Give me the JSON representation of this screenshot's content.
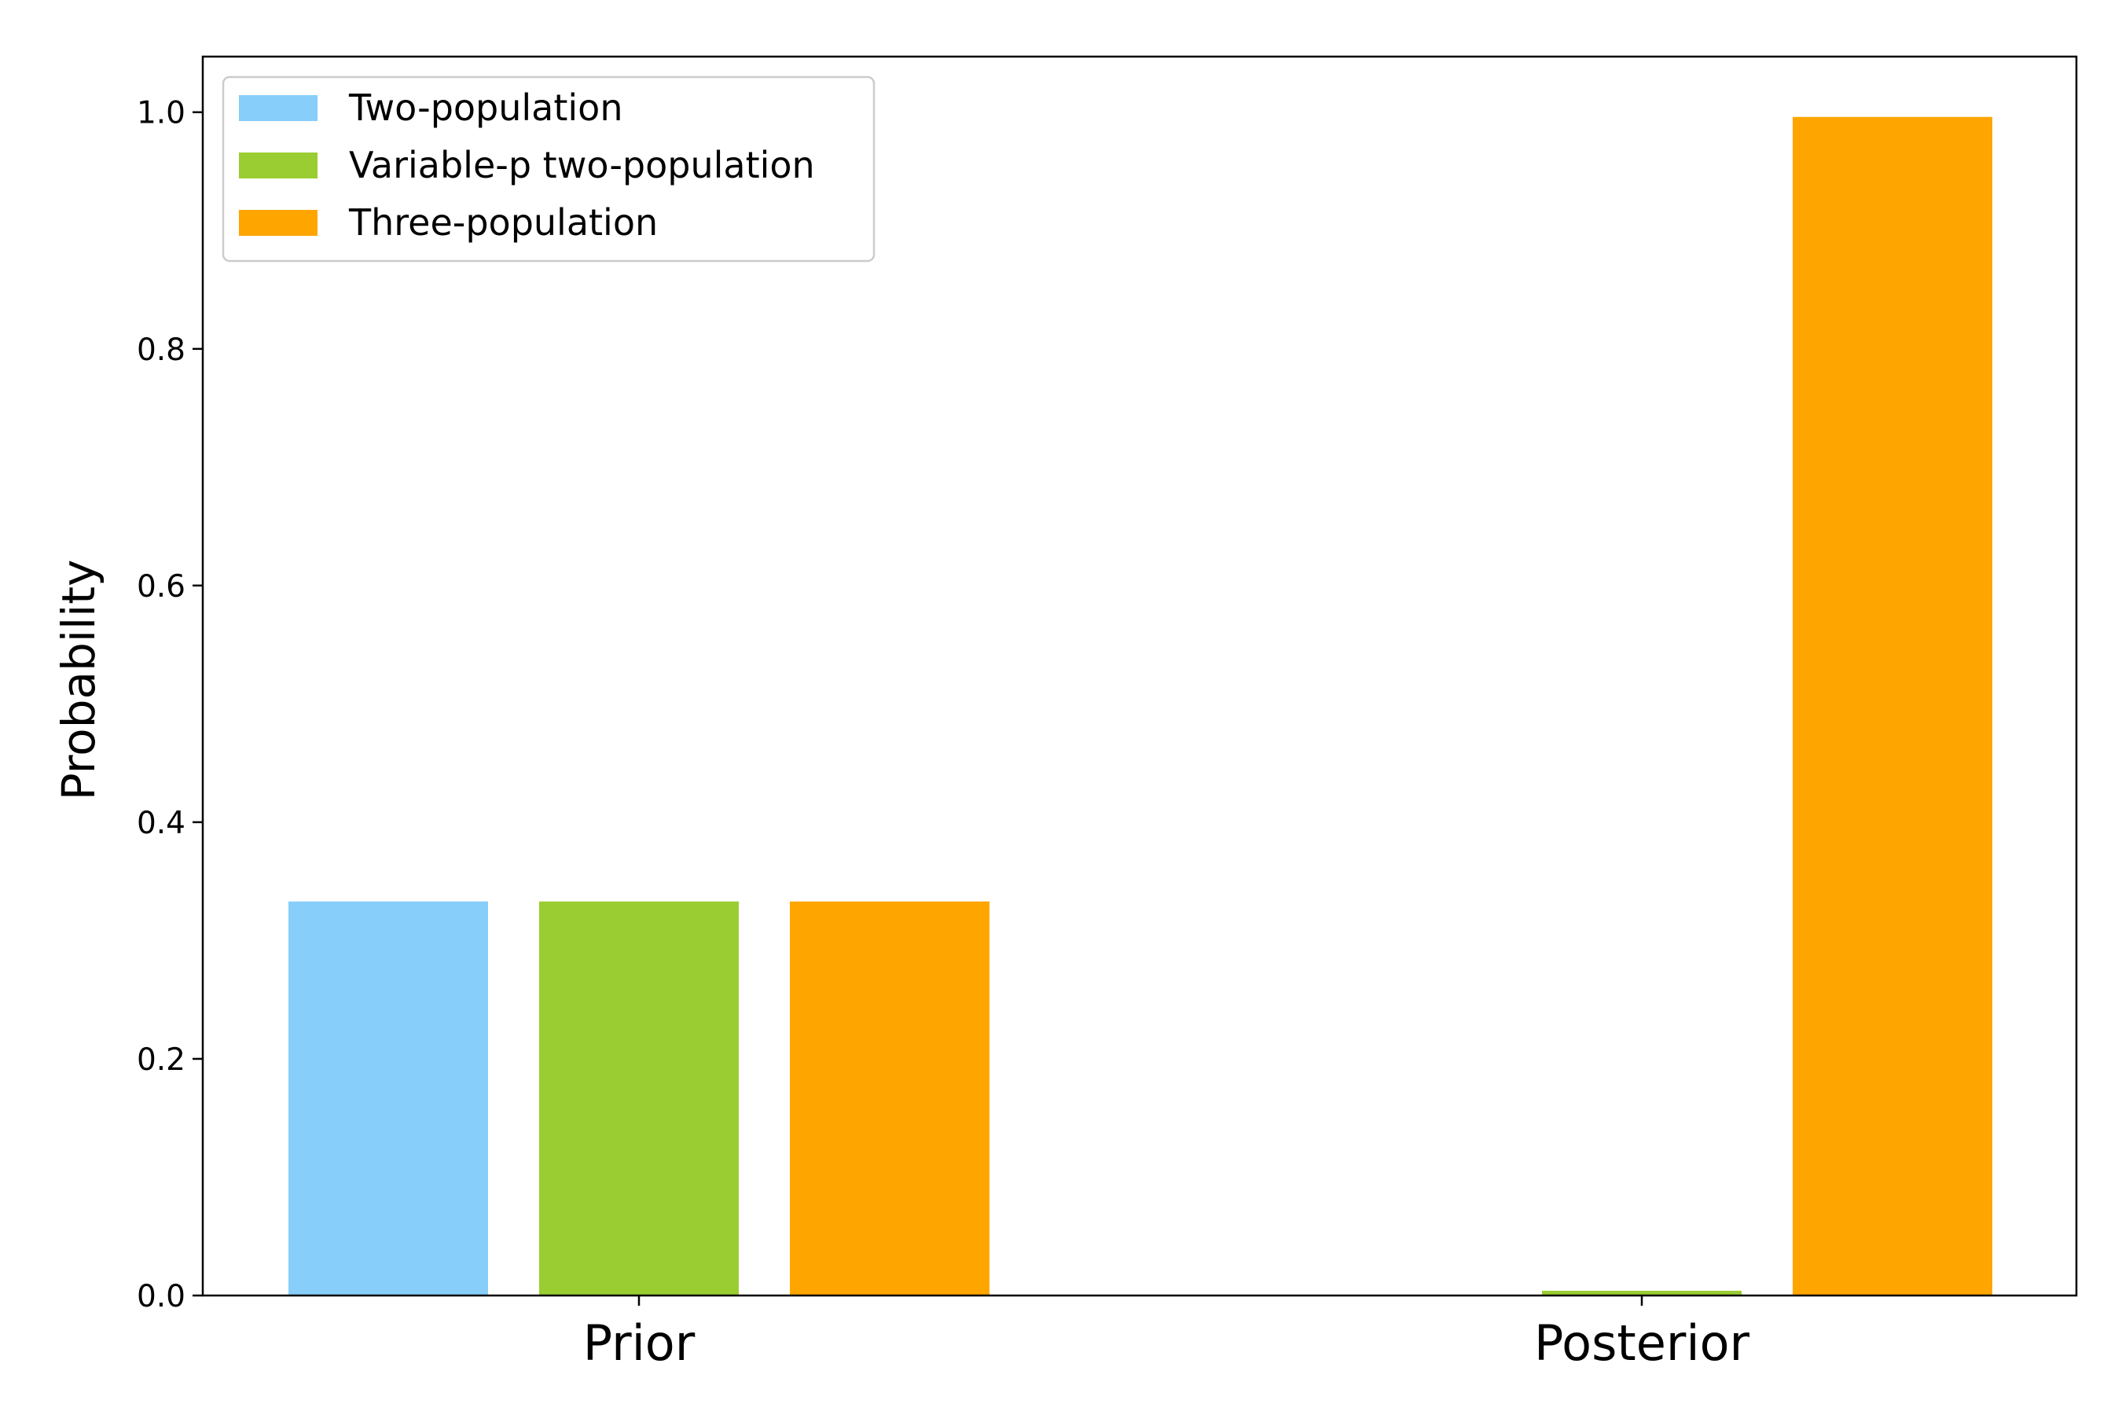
{
  "chart_data": {
    "type": "bar",
    "categories": [
      "Prior",
      "Posterior"
    ],
    "series": [
      {
        "name": "Two-population",
        "color": "#87CEFA",
        "values": [
          0.333,
          0.0
        ]
      },
      {
        "name": "Variable-p two-population",
        "color": "#9ACD32",
        "values": [
          0.333,
          0.004
        ]
      },
      {
        "name": "Three-population",
        "color": "#FFA500",
        "values": [
          0.333,
          0.996
        ]
      }
    ],
    "ylabel": "Probability",
    "ylim": [
      0.0,
      1.047
    ],
    "yticks": [
      "0.0",
      "0.2",
      "0.4",
      "0.6",
      "0.8",
      "1.0"
    ],
    "grid": false,
    "legend_position": "top-left"
  }
}
